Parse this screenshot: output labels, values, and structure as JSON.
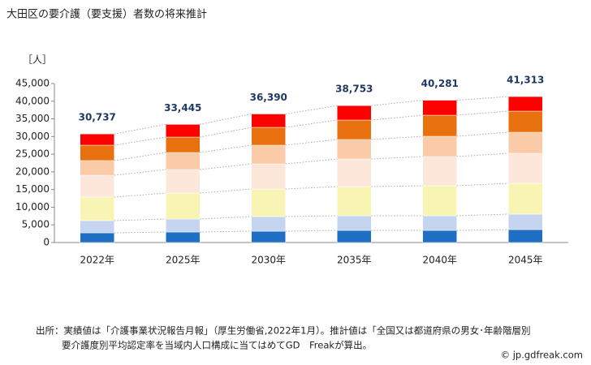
{
  "chart_data": {
    "type": "stacked_bar",
    "title": "大田区の要介護（要支援）者数の将来推計",
    "ylabel": "［人］",
    "categories": [
      "2022年",
      "2025年",
      "2030年",
      "2035年",
      "2040年",
      "2045年"
    ],
    "series": [
      {
        "color": "#1f6fc5",
        "values": [
          2750,
          2980,
          3210,
          3440,
          3440,
          3670
        ]
      },
      {
        "color": "#c5d5f0",
        "values": [
          3450,
          3680,
          4140,
          4140,
          4140,
          4370
        ]
      },
      {
        "color": "#f8f5b4",
        "values": [
          6660,
          7340,
          7800,
          8260,
          8490,
          8720
        ]
      },
      {
        "color": "#fde6da",
        "values": [
          6190,
          6660,
          7120,
          7810,
          8260,
          8490
        ]
      },
      {
        "color": "#fbcaa6",
        "values": [
          4150,
          4820,
          5280,
          5510,
          5740,
          5970
        ]
      },
      {
        "color": "#e8700e",
        "values": [
          4350,
          4360,
          5050,
          5510,
          5970,
          5970
        ]
      },
      {
        "color": "#ff0000",
        "values": [
          3187,
          3605,
          3790,
          4083,
          4241,
          4123
        ]
      }
    ],
    "totals": [
      30737,
      33445,
      36390,
      38753,
      40281,
      41313
    ],
    "total_labels": [
      "30,737",
      "33,445",
      "36,390",
      "38,753",
      "40,281",
      "41,313"
    ],
    "ylim": [
      0,
      45000
    ],
    "yticks": [
      0,
      {
        "value": 5000,
        "label": "5,000"
      },
      {
        "value": 10000,
        "label": "10,000"
      },
      {
        "value": 15000,
        "label": "15,000"
      },
      {
        "value": 20000,
        "label": "20,000"
      },
      {
        "value": 25000,
        "label": "25,000"
      },
      {
        "value": 30000,
        "label": "30,000"
      },
      {
        "value": 35000,
        "label": "35,000"
      },
      {
        "value": 40000,
        "label": "40,000"
      },
      {
        "value": 45000,
        "label": "45,000"
      }
    ],
    "source_line1": "出所：実績値は「介護事業状況報告月報」（厚生労働省,2022年1月）。推計値は「全国又は都道府県の男女･年齢階層別",
    "source_line2": "要介護度別平均認定率を当域内人口構成に当てはめてGD　Freakが算出。",
    "credit": "© jp.gdfreak.com"
  }
}
